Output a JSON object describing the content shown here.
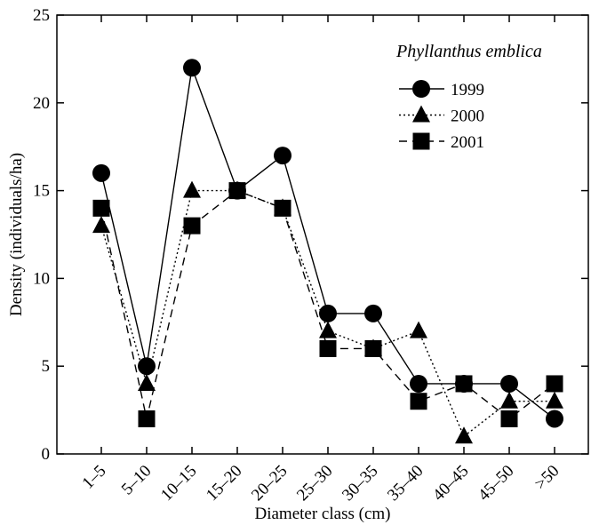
{
  "chart_data": {
    "type": "line",
    "title": "Phyllanthus emblica",
    "xlabel": "Diameter class (cm)",
    "ylabel": "Density (individuals/ha)",
    "categories": [
      "1–5",
      "5–10",
      "10–15",
      "15–20",
      "20–25",
      "25–30",
      "30–35",
      "35–40",
      "40–45",
      "45–50",
      ">50"
    ],
    "ylim": [
      0,
      25
    ],
    "yticks": [
      0,
      5,
      10,
      15,
      20,
      25
    ],
    "grid": false,
    "legend_position": "top-right",
    "series": [
      {
        "name": "1999",
        "marker": "circle",
        "line_style": "solid",
        "values": [
          16,
          5,
          22,
          15,
          17,
          8,
          8,
          4,
          4,
          4,
          2
        ]
      },
      {
        "name": "2000",
        "marker": "triangle",
        "line_style": "dotted",
        "values": [
          13,
          4,
          15,
          15,
          14,
          7,
          6,
          7,
          1,
          3,
          3
        ]
      },
      {
        "name": "2001",
        "marker": "square",
        "line_style": "dashed",
        "values": [
          14,
          2,
          13,
          15,
          14,
          6,
          6,
          3,
          4,
          2,
          4
        ]
      }
    ],
    "colors": {
      "line": "#000000",
      "marker": "#000000",
      "background": "#ffffff"
    }
  }
}
